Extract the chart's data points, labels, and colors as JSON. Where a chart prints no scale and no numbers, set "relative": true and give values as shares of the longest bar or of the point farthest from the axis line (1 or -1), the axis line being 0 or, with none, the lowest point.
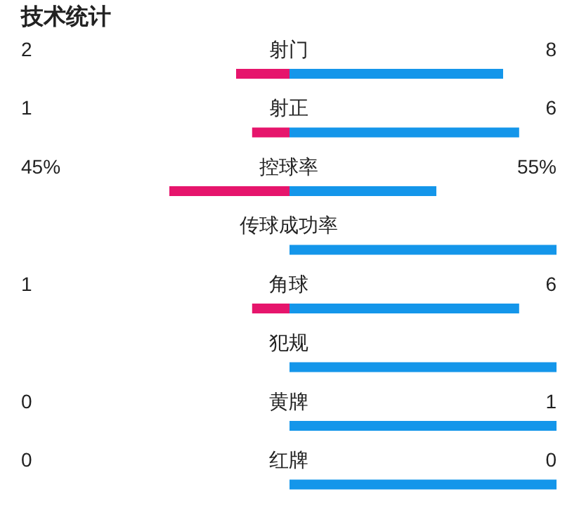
{
  "chart_data": {
    "type": "bar",
    "title": "技术统计",
    "orientation": "horizontal",
    "stacked": true,
    "relative": true,
    "legend": false,
    "grid": false,
    "categories": [
      "射门",
      "射正",
      "控球率",
      "传球成功率",
      "角球",
      "犯规",
      "黄牌",
      "红牌"
    ],
    "series": [
      {
        "color": "#e6156c",
        "values": [
          -0.2,
          -0.14,
          -0.45,
          0,
          -0.14,
          0,
          0,
          0
        ]
      },
      {
        "color": "#1496ea",
        "values": [
          0.8,
          0.86,
          0.55,
          1,
          0.86,
          1,
          1,
          1
        ]
      }
    ],
    "annotations": [
      "2",
      "8",
      "1",
      "6",
      "45%",
      "55%",
      "1",
      "6",
      "0",
      "1",
      "0",
      "0"
    ]
  }
}
